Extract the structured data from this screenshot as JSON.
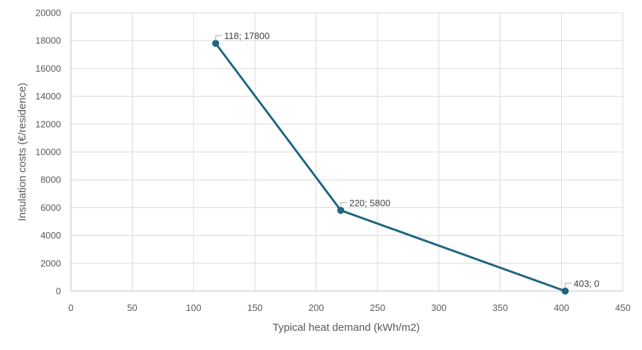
{
  "chart_data": {
    "type": "line",
    "title": "",
    "xlabel": "Typical heat demand (kWh/m2)",
    "ylabel": "Insulation costs (€/residence)",
    "xlim": [
      0,
      450
    ],
    "ylim": [
      0,
      20000
    ],
    "x_ticks": [
      0,
      50,
      100,
      150,
      200,
      250,
      300,
      350,
      400,
      450
    ],
    "y_ticks": [
      0,
      2000,
      4000,
      6000,
      8000,
      10000,
      12000,
      14000,
      16000,
      18000,
      20000
    ],
    "grid": true,
    "legend": "none",
    "series": [
      {
        "name": "Insulation costs",
        "color": "#1f6680",
        "points": [
          {
            "x": 118,
            "y": 17800,
            "label": "118; 17800"
          },
          {
            "x": 220,
            "y": 5800,
            "label": "220; 5800"
          },
          {
            "x": 403,
            "y": 0,
            "label": "403; 0"
          }
        ]
      }
    ]
  }
}
